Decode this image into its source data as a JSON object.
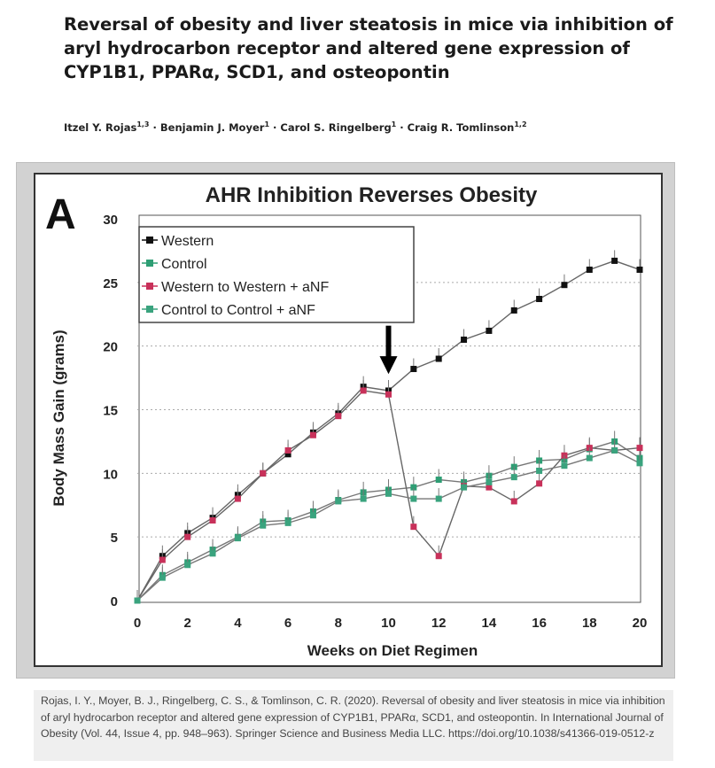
{
  "paper": {
    "title": "Reversal of obesity and liver steatosis in mice via inhibition of aryl hydrocarbon receptor and altered gene expression of CYP1B1, PPARα, SCD1, and osteopontin",
    "authors": [
      {
        "name": "Itzel Y. Rojas",
        "aff": "1,3"
      },
      {
        "name": "Benjamin J. Moyer",
        "aff": "1"
      },
      {
        "name": "Carol S. Ringelberg",
        "aff": "1"
      },
      {
        "name": "Craig R. Tomlinson",
        "aff": "1,2"
      }
    ],
    "author_separator": " · "
  },
  "caption": {
    "text": "Rojas, I. Y., Moyer, B. J., Ringelberg, C. S., & Tomlinson, C. R. (2020). Reversal of obesity and liver steatosis in mice via inhibition of aryl hydrocarbon receptor and altered gene expression of CYP1B1, PPARα, SCD1, and osteopontin. In International Journal of Obesity (Vol. 44, Issue 4, pp. 948–963). Springer Science and Business Media LLC. https://doi.org/10.1038/s41366-019-0512-z"
  },
  "chart_data": {
    "type": "line",
    "panel_label": "A",
    "title": "AHR Inhibition Reverses Obesity",
    "xlabel": "Weeks on Diet Regimen",
    "ylabel": "Body Mass Gain (grams)",
    "xlim": [
      0,
      20
    ],
    "ylim": [
      0,
      30
    ],
    "xticks": [
      0,
      2,
      4,
      6,
      8,
      10,
      12,
      14,
      16,
      18,
      20
    ],
    "yticks": [
      0,
      5,
      10,
      15,
      20,
      25,
      30
    ],
    "grid": "horizontal dotted",
    "legend_position": "top-left",
    "annotation": {
      "type": "arrow",
      "x": 10,
      "label": ""
    },
    "series": [
      {
        "name": "Western",
        "color": "#111111",
        "x": [
          0,
          1,
          2,
          3,
          4,
          5,
          6,
          7,
          8,
          9,
          10,
          11,
          12,
          13,
          14,
          15,
          16,
          17,
          18,
          19,
          20
        ],
        "values": [
          0,
          3.5,
          5.3,
          6.5,
          8.3,
          10,
          11.5,
          13.2,
          14.7,
          16.8,
          16.5,
          18.2,
          19,
          20.5,
          21.2,
          22.8,
          23.7,
          24.8,
          26,
          26.7,
          26
        ]
      },
      {
        "name": "Control",
        "color": "#2e9e74",
        "x": [
          0,
          1,
          2,
          3,
          4,
          5,
          6,
          7,
          8,
          9,
          10,
          11,
          12,
          13,
          14,
          15,
          16,
          17,
          18,
          19,
          20
        ],
        "values": [
          0,
          2,
          3,
          4,
          5,
          6.2,
          6.3,
          7,
          7.9,
          8.5,
          8.7,
          8.9,
          9.5,
          9.3,
          9.8,
          10.5,
          11,
          11.1,
          11.9,
          12.5,
          11.2
        ]
      },
      {
        "name": "Western to Western + aNF",
        "color": "#c8315a",
        "x": [
          0,
          1,
          2,
          3,
          4,
          5,
          6,
          7,
          8,
          9,
          10,
          11,
          12,
          13,
          14,
          15,
          16,
          17,
          18,
          19,
          20
        ],
        "values": [
          0,
          3.2,
          5,
          6.3,
          8,
          10,
          11.8,
          13,
          14.5,
          16.5,
          16.2,
          5.8,
          3.5,
          9,
          8.9,
          7.8,
          9.2,
          11.4,
          12,
          11.8,
          12
        ]
      },
      {
        "name": "Control to Control + aNF",
        "color": "#3aa37e",
        "x": [
          0,
          1,
          2,
          3,
          4,
          5,
          6,
          7,
          8,
          9,
          10,
          11,
          12,
          13,
          14,
          15,
          16,
          17,
          18,
          19,
          20
        ],
        "values": [
          0,
          1.8,
          2.8,
          3.7,
          4.9,
          5.9,
          6.1,
          6.7,
          7.8,
          8,
          8.4,
          8,
          8,
          8.9,
          9.3,
          9.7,
          10.2,
          10.6,
          11.2,
          11.8,
          10.8
        ]
      }
    ]
  }
}
